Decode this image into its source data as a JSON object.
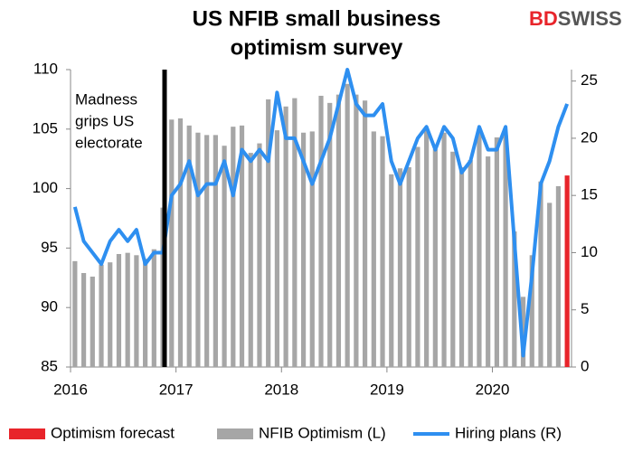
{
  "chart_data": {
    "type": "bar",
    "title": [
      "US NFIB small business",
      "optimism survey"
    ],
    "logo": [
      {
        "text": "BD",
        "color": "#e8242a"
      },
      {
        "text": "SWISS",
        "color": "#555555"
      }
    ],
    "annotation": [
      "Madness",
      "grips US",
      "electorate"
    ],
    "categories": [
      "2016",
      null,
      null,
      null,
      null,
      null,
      null,
      null,
      null,
      null,
      null,
      null,
      "2017",
      null,
      null,
      null,
      null,
      null,
      null,
      null,
      null,
      null,
      null,
      null,
      "2018",
      null,
      null,
      null,
      null,
      null,
      null,
      null,
      null,
      null,
      null,
      null,
      "2019",
      null,
      null,
      null,
      null,
      null,
      null,
      null,
      null,
      null,
      null,
      null,
      "2020",
      null,
      null,
      null,
      null,
      null,
      null,
      null,
      null
    ],
    "series": [
      {
        "name": "Optimism forecast",
        "type": "bar",
        "color": "#e8242a",
        "values": [
          null,
          null,
          null,
          null,
          null,
          null,
          null,
          null,
          null,
          null,
          null,
          null,
          null,
          null,
          null,
          null,
          null,
          null,
          null,
          null,
          null,
          null,
          null,
          null,
          null,
          null,
          null,
          null,
          null,
          null,
          null,
          null,
          null,
          null,
          null,
          null,
          null,
          null,
          null,
          null,
          null,
          null,
          null,
          null,
          null,
          null,
          null,
          null,
          null,
          null,
          null,
          null,
          null,
          null,
          null,
          null,
          101.1
        ]
      },
      {
        "name": "NFIB Optimism (L)",
        "type": "bar",
        "color": "#a6a6a6",
        "values": [
          93.9,
          92.9,
          92.6,
          93.6,
          93.8,
          94.5,
          94.6,
          94.4,
          94.1,
          94.9,
          98.4,
          105.8,
          105.9,
          105.3,
          104.7,
          104.5,
          104.5,
          103.6,
          105.2,
          105.3,
          103.0,
          103.8,
          107.5,
          104.9,
          106.9,
          107.6,
          104.7,
          104.8,
          107.8,
          107.2,
          107.9,
          108.8,
          107.9,
          107.4,
          104.8,
          104.4,
          101.2,
          101.7,
          101.8,
          103.5,
          105.0,
          103.3,
          104.7,
          103.1,
          101.8,
          102.4,
          104.7,
          102.7,
          104.3,
          104.5,
          96.4,
          90.9,
          94.4,
          100.6,
          98.8,
          100.2,
          null
        ]
      },
      {
        "name": "Hiring plans (R)",
        "type": "line",
        "axis": "y2",
        "color": "#2e8ff0",
        "values": [
          14,
          11,
          10,
          9,
          11,
          12,
          11,
          12,
          9,
          10,
          10,
          15,
          16,
          18,
          15,
          16,
          16,
          18,
          15,
          19,
          18,
          19,
          18,
          24,
          20,
          20,
          18,
          16,
          18,
          20,
          23,
          26,
          23,
          22,
          22,
          23,
          18,
          16,
          18,
          20,
          21,
          19,
          21,
          20,
          17,
          18,
          21,
          19,
          19,
          21,
          11,
          1,
          8,
          16,
          18,
          21,
          23
        ]
      }
    ],
    "ylim": [
      85,
      110
    ],
    "yticks": [
      85,
      90,
      95,
      100,
      105,
      110
    ],
    "y2lim": [
      0,
      26
    ],
    "y2ticks": [
      0,
      5,
      10,
      15,
      20,
      25
    ],
    "legend": "bottom"
  }
}
